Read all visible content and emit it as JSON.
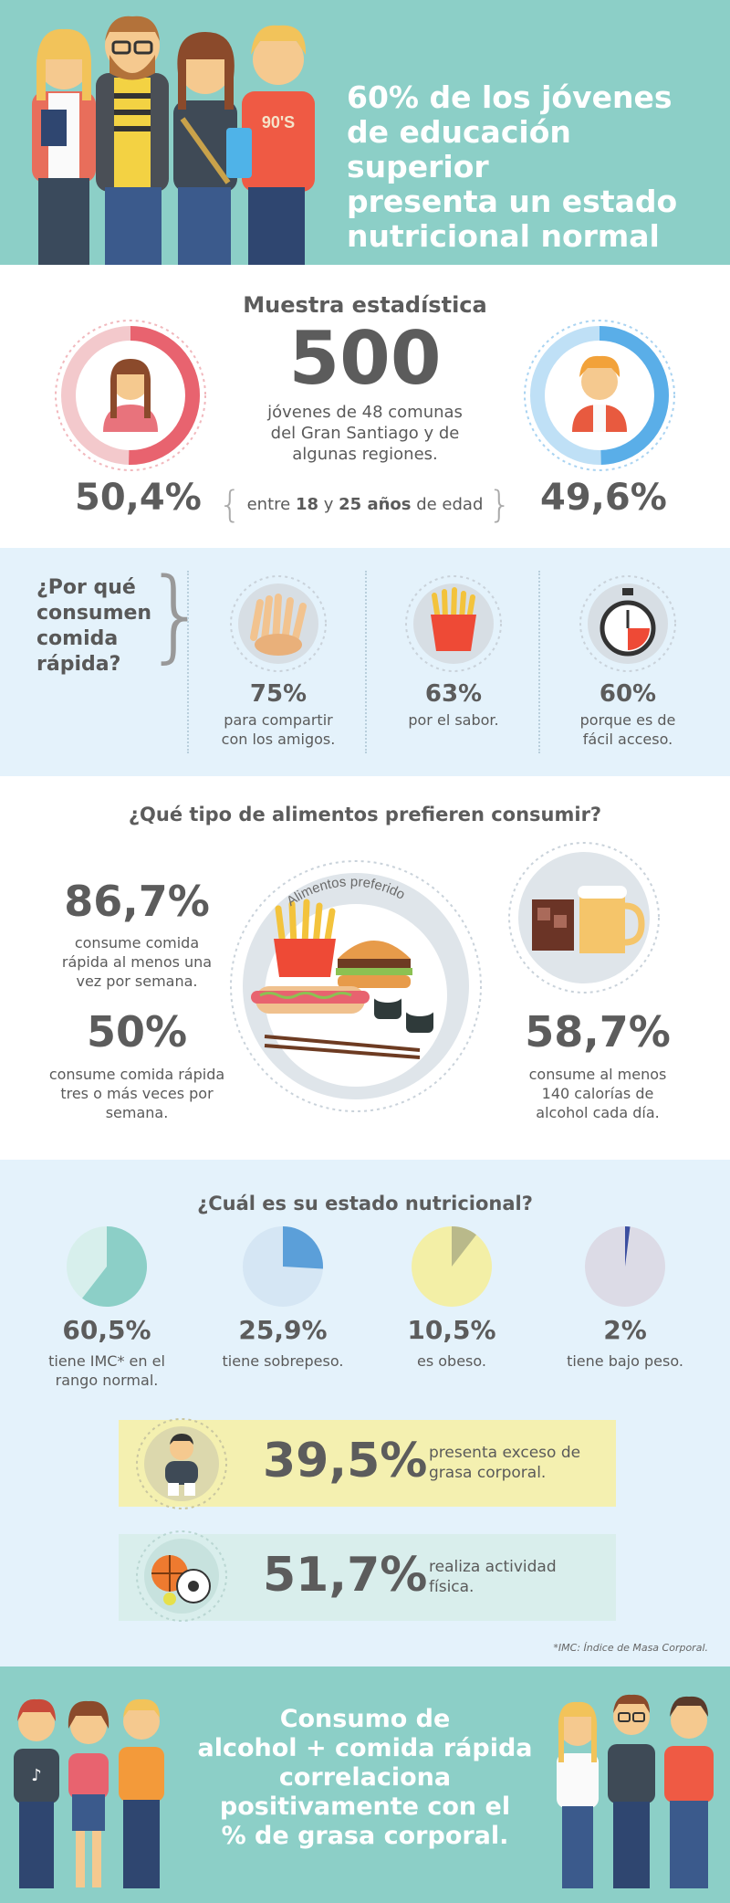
{
  "header": {
    "title_lines": [
      "60% de los jóvenes",
      "de educación superior",
      "presenta un estado",
      "nutricional normal"
    ],
    "shirt_text": "90'S"
  },
  "sample": {
    "heading": "Muestra estadística",
    "count": "500",
    "desc_lines": [
      "jóvenes de 48 comunas",
      "del Gran Santiago y de",
      "algunas regiones."
    ],
    "female_pct": "50,4%",
    "male_pct": "49,6%",
    "age_prefix": "entre ",
    "age_from": "18",
    "age_and": " y ",
    "age_to": "25 años",
    "age_suffix": " de edad",
    "female_fraction": 0.504,
    "male_fraction": 0.496
  },
  "why": {
    "question_lines": [
      "¿Por qué",
      "consumen",
      "comida",
      "rápida?"
    ],
    "items": [
      {
        "value": "75%",
        "label_lines": [
          "para compartir",
          "con los amigos."
        ],
        "icon": "hands-icon"
      },
      {
        "value": "63%",
        "label_lines": [
          "por el sabor."
        ],
        "icon": "fries-icon"
      },
      {
        "value": "60%",
        "label_lines": [
          "porque es de",
          "fácil acceso."
        ],
        "icon": "stopwatch-icon"
      }
    ]
  },
  "preferred": {
    "heading": "¿Qué tipo de alimentos prefieren consumir?",
    "circle_label": "Alimentos preferidos",
    "stat1_value": "86,7%",
    "stat1_lines": [
      "consume comida",
      "rápida al menos una",
      "vez por semana."
    ],
    "stat2_value": "50%",
    "stat2_lines": [
      "consume comida rápida",
      "tres o más veces por",
      "semana."
    ],
    "stat3_value": "58,7%",
    "stat3_lines": [
      "consume al menos",
      "140 calorías de",
      "alcohol cada día."
    ]
  },
  "nutrition": {
    "heading": "¿Cuál es su estado nutricional?",
    "items": [
      {
        "value": "60,5%",
        "fraction": 0.605,
        "fill": "#8ccfc7",
        "bg": "#d7efec",
        "label_lines": [
          "tiene IMC* en el",
          "rango normal."
        ]
      },
      {
        "value": "25,9%",
        "fraction": 0.259,
        "fill": "#5b9fd9",
        "bg": "#d5e6f4",
        "label_lines": [
          "tiene sobrepeso."
        ]
      },
      {
        "value": "10,5%",
        "fraction": 0.105,
        "fill": "#b9b98a",
        "bg": "#f3efa6",
        "label_lines": [
          "es obeso."
        ]
      },
      {
        "value": "2%",
        "fraction": 0.02,
        "fill": "#3c4fa0",
        "bg": "#dcdbe6",
        "label_lines": [
          "tiene bajo peso."
        ]
      }
    ],
    "fat_value": "39,5%",
    "fat_lines": [
      "presenta exceso de",
      "grasa corporal."
    ],
    "activity_value": "51,7%",
    "activity_lines": [
      "realiza actividad",
      "física."
    ],
    "footnote": "*IMC: Índice de Masa Corporal."
  },
  "footer": {
    "lines": [
      "Consumo de",
      "alcohol + comida rápida",
      "correlaciona",
      "positivamente con el",
      "% de grasa corporal."
    ]
  },
  "colors": {
    "teal": "#8ccfc7",
    "pink": "#e8636f",
    "blue": "#5aaee8",
    "yellow_box": "#f4f0b0",
    "green_box": "#d9eeec",
    "text_dark": "#5c5c5c"
  }
}
